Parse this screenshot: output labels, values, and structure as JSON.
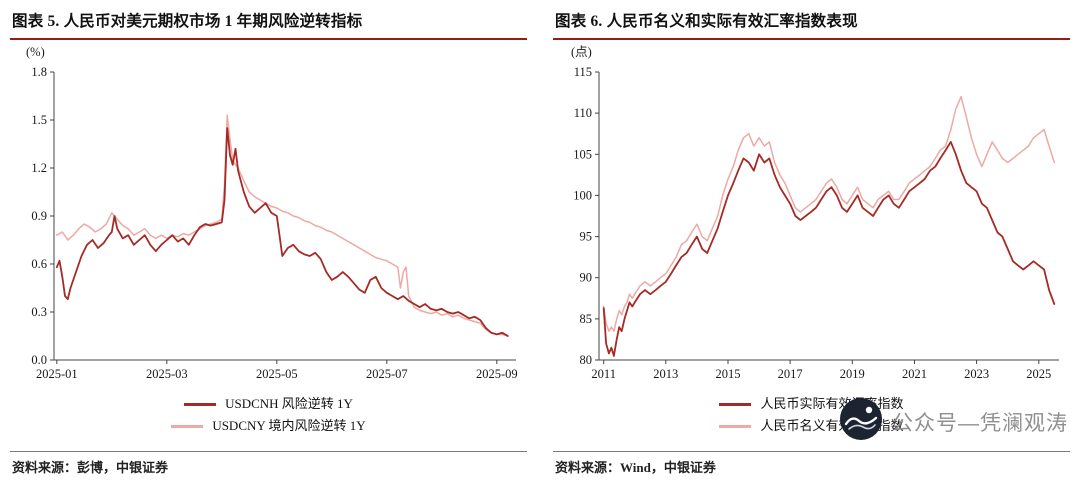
{
  "colors": {
    "title_rule": "#921E18",
    "axis": "#444444",
    "watermark_gray": "#8f8f8f",
    "dark_red": "#A52A25",
    "light_pink": "#EDA9A4"
  },
  "panels": [
    {
      "title": "图表 5. 人民币对美元期权市场 1 年期风险逆转指标",
      "source": "资料来源：彭博，中银证券"
    },
    {
      "title": "图表 6. 人民币名义和实际有效汇率指数表现",
      "source": "资料来源：Wind，中银证券"
    }
  ],
  "watermark": {
    "text": "公众号—凭澜观涛",
    "logo": "wave-logo"
  },
  "chart_data": [
    {
      "type": "line",
      "title": "人民币对美元期权市场1年期风险逆转指标",
      "unit": "(%)",
      "xlabel": "",
      "ylabel": "%",
      "grid": false,
      "legend_position": "bottom",
      "ylim": [
        0,
        1.8
      ],
      "yticks": [
        0.0,
        0.3,
        0.6,
        0.9,
        1.2,
        1.5,
        1.8
      ],
      "ytick_labels": [
        "0.0",
        "0.3",
        "0.6",
        "0.9",
        "1.2",
        "1.5",
        "1.8"
      ],
      "xlim": [
        0.95,
        9.35
      ],
      "xticks": [
        {
          "v": 1,
          "label": "2025-01"
        },
        {
          "v": 3,
          "label": "2025-03"
        },
        {
          "v": 5,
          "label": "2025-05"
        },
        {
          "v": 7,
          "label": "2025-07"
        },
        {
          "v": 9,
          "label": "2025-09"
        }
      ],
      "series": [
        {
          "name": "USDCNH 风险逆转 1Y",
          "color": "#A52A25",
          "x": [
            1.0,
            1.05,
            1.1,
            1.15,
            1.2,
            1.25,
            1.35,
            1.45,
            1.55,
            1.65,
            1.75,
            1.85,
            1.95,
            2.0,
            2.05,
            2.1,
            2.2,
            2.3,
            2.4,
            2.5,
            2.6,
            2.7,
            2.8,
            2.9,
            3.0,
            3.1,
            3.2,
            3.3,
            3.4,
            3.5,
            3.6,
            3.7,
            3.8,
            3.9,
            4.0,
            4.05,
            4.1,
            4.15,
            4.2,
            4.25,
            4.3,
            4.4,
            4.5,
            4.6,
            4.7,
            4.8,
            4.9,
            5.0,
            5.05,
            5.1,
            5.2,
            5.3,
            5.4,
            5.5,
            5.6,
            5.7,
            5.8,
            5.9,
            6.0,
            6.1,
            6.2,
            6.3,
            6.4,
            6.5,
            6.6,
            6.7,
            6.8,
            6.9,
            7.0,
            7.1,
            7.2,
            7.3,
            7.4,
            7.5,
            7.6,
            7.7,
            7.8,
            7.9,
            8.0,
            8.1,
            8.2,
            8.3,
            8.4,
            8.5,
            8.6,
            8.7,
            8.8,
            8.9,
            9.0,
            9.1,
            9.2
          ],
          "y": [
            0.58,
            0.62,
            0.52,
            0.4,
            0.38,
            0.45,
            0.55,
            0.65,
            0.72,
            0.75,
            0.7,
            0.73,
            0.78,
            0.8,
            0.9,
            0.82,
            0.76,
            0.78,
            0.72,
            0.75,
            0.78,
            0.72,
            0.68,
            0.72,
            0.75,
            0.78,
            0.74,
            0.76,
            0.72,
            0.78,
            0.83,
            0.85,
            0.84,
            0.85,
            0.86,
            1.0,
            1.45,
            1.28,
            1.22,
            1.32,
            1.18,
            1.05,
            0.96,
            0.92,
            0.95,
            0.98,
            0.92,
            0.9,
            0.78,
            0.65,
            0.7,
            0.72,
            0.68,
            0.66,
            0.65,
            0.67,
            0.63,
            0.55,
            0.5,
            0.52,
            0.55,
            0.52,
            0.48,
            0.44,
            0.42,
            0.5,
            0.52,
            0.45,
            0.42,
            0.4,
            0.38,
            0.4,
            0.37,
            0.35,
            0.33,
            0.35,
            0.32,
            0.31,
            0.32,
            0.3,
            0.29,
            0.3,
            0.28,
            0.26,
            0.27,
            0.25,
            0.2,
            0.17,
            0.16,
            0.17,
            0.15
          ]
        },
        {
          "name": "USDCNY 境内风险逆转 1Y",
          "color": "#EDA9A4",
          "x": [
            1.0,
            1.1,
            1.2,
            1.3,
            1.4,
            1.5,
            1.6,
            1.7,
            1.8,
            1.9,
            2.0,
            2.1,
            2.2,
            2.3,
            2.4,
            2.5,
            2.6,
            2.7,
            2.8,
            2.9,
            3.0,
            3.1,
            3.2,
            3.3,
            3.4,
            3.5,
            3.6,
            3.7,
            3.8,
            3.9,
            4.0,
            4.05,
            4.1,
            4.15,
            4.2,
            4.25,
            4.3,
            4.4,
            4.5,
            4.6,
            4.7,
            4.8,
            4.9,
            5.0,
            5.1,
            5.2,
            5.3,
            5.4,
            5.5,
            5.6,
            5.7,
            5.8,
            5.9,
            6.0,
            6.1,
            6.2,
            6.3,
            6.4,
            6.5,
            6.6,
            6.7,
            6.8,
            6.9,
            7.0,
            7.1,
            7.2,
            7.25,
            7.3,
            7.35,
            7.4,
            7.5,
            7.6,
            7.7,
            7.8,
            7.9,
            8.0,
            8.1,
            8.2,
            8.3,
            8.4,
            8.5,
            8.6,
            8.7,
            8.8,
            8.9,
            9.0,
            9.1,
            9.2
          ],
          "y": [
            0.78,
            0.8,
            0.75,
            0.78,
            0.82,
            0.85,
            0.83,
            0.8,
            0.82,
            0.85,
            0.92,
            0.88,
            0.84,
            0.82,
            0.78,
            0.8,
            0.82,
            0.78,
            0.76,
            0.78,
            0.76,
            0.78,
            0.77,
            0.79,
            0.78,
            0.8,
            0.82,
            0.84,
            0.85,
            0.86,
            0.88,
            1.1,
            1.53,
            1.38,
            1.25,
            1.22,
            1.2,
            1.12,
            1.05,
            1.02,
            1.0,
            0.98,
            0.96,
            0.95,
            0.93,
            0.92,
            0.9,
            0.89,
            0.87,
            0.86,
            0.84,
            0.83,
            0.81,
            0.8,
            0.78,
            0.76,
            0.74,
            0.72,
            0.7,
            0.68,
            0.66,
            0.64,
            0.63,
            0.62,
            0.6,
            0.58,
            0.45,
            0.55,
            0.58,
            0.4,
            0.33,
            0.31,
            0.3,
            0.29,
            0.3,
            0.28,
            0.29,
            0.27,
            0.28,
            0.26,
            0.25,
            0.24,
            0.23,
            0.19,
            0.17,
            0.16,
            0.16,
            0.15
          ]
        }
      ]
    },
    {
      "type": "line",
      "title": "人民币名义和实际有效汇率指数表现",
      "unit": "(点)",
      "xlabel": "",
      "ylabel": "点",
      "grid": false,
      "legend_position": "bottom",
      "ylim": [
        80,
        115
      ],
      "yticks": [
        80,
        85,
        90,
        95,
        100,
        105,
        110,
        115
      ],
      "ytick_labels": [
        "80",
        "85",
        "90",
        "95",
        "100",
        "105",
        "110",
        "115"
      ],
      "xlim": [
        2010.85,
        2025.65
      ],
      "xticks": [
        {
          "v": 2011,
          "label": "2011"
        },
        {
          "v": 2013,
          "label": "2013"
        },
        {
          "v": 2015,
          "label": "2015"
        },
        {
          "v": 2017,
          "label": "2017"
        },
        {
          "v": 2019,
          "label": "2019"
        },
        {
          "v": 2021,
          "label": "2021"
        },
        {
          "v": 2023,
          "label": "2023"
        },
        {
          "v": 2025,
          "label": "2025"
        }
      ],
      "series": [
        {
          "name": "人民币实际有效汇率指数",
          "color": "#A52A25",
          "x": [
            2011.0,
            2011.08,
            2011.17,
            2011.25,
            2011.33,
            2011.42,
            2011.5,
            2011.58,
            2011.67,
            2011.75,
            2011.83,
            2011.92,
            2012.0,
            2012.17,
            2012.33,
            2012.5,
            2012.67,
            2012.83,
            2013.0,
            2013.17,
            2013.33,
            2013.5,
            2013.67,
            2013.83,
            2014.0,
            2014.17,
            2014.33,
            2014.5,
            2014.67,
            2014.83,
            2015.0,
            2015.17,
            2015.33,
            2015.5,
            2015.67,
            2015.83,
            2016.0,
            2016.17,
            2016.33,
            2016.5,
            2016.67,
            2016.83,
            2017.0,
            2017.17,
            2017.33,
            2017.5,
            2017.67,
            2017.83,
            2018.0,
            2018.17,
            2018.33,
            2018.5,
            2018.67,
            2018.83,
            2019.0,
            2019.17,
            2019.33,
            2019.5,
            2019.67,
            2019.83,
            2020.0,
            2020.17,
            2020.33,
            2020.5,
            2020.67,
            2020.83,
            2021.0,
            2021.17,
            2021.33,
            2021.5,
            2021.67,
            2021.83,
            2022.0,
            2022.17,
            2022.33,
            2022.5,
            2022.67,
            2022.83,
            2023.0,
            2023.17,
            2023.33,
            2023.5,
            2023.67,
            2023.83,
            2024.0,
            2024.17,
            2024.33,
            2024.5,
            2024.67,
            2024.83,
            2025.0,
            2025.17,
            2025.33,
            2025.5
          ],
          "y": [
            86.3,
            82.0,
            80.8,
            81.5,
            80.5,
            82.5,
            84.0,
            83.5,
            85.0,
            86.0,
            87.0,
            86.5,
            87.0,
            88.0,
            88.5,
            88.0,
            88.5,
            89.0,
            89.5,
            90.5,
            91.5,
            92.5,
            93.0,
            94.0,
            95.0,
            93.5,
            93.0,
            94.5,
            96.0,
            98.0,
            100.0,
            101.5,
            103.0,
            104.5,
            104.0,
            103.0,
            105.0,
            104.0,
            104.5,
            102.5,
            101.0,
            100.0,
            99.0,
            97.5,
            97.0,
            97.5,
            98.0,
            98.5,
            99.5,
            100.5,
            101.0,
            100.0,
            98.5,
            98.0,
            99.0,
            100.0,
            98.5,
            98.0,
            97.5,
            98.5,
            99.5,
            100.0,
            99.0,
            98.5,
            99.5,
            100.5,
            101.0,
            101.5,
            102.0,
            103.0,
            103.5,
            104.5,
            105.5,
            106.5,
            105.0,
            103.0,
            101.5,
            101.0,
            100.5,
            99.0,
            98.5,
            97.0,
            95.5,
            95.0,
            93.5,
            92.0,
            91.5,
            91.0,
            91.5,
            92.0,
            91.5,
            91.0,
            88.5,
            86.8
          ]
        },
        {
          "name": "人民币名义有效汇率指数",
          "color": "#EDA9A4",
          "x": [
            2011.0,
            2011.08,
            2011.17,
            2011.25,
            2011.33,
            2011.42,
            2011.5,
            2011.58,
            2011.67,
            2011.75,
            2011.83,
            2011.92,
            2012.0,
            2012.17,
            2012.33,
            2012.5,
            2012.67,
            2012.83,
            2013.0,
            2013.17,
            2013.33,
            2013.5,
            2013.67,
            2013.83,
            2014.0,
            2014.17,
            2014.33,
            2014.5,
            2014.67,
            2014.83,
            2015.0,
            2015.17,
            2015.33,
            2015.5,
            2015.67,
            2015.83,
            2016.0,
            2016.17,
            2016.33,
            2016.5,
            2016.67,
            2016.83,
            2017.0,
            2017.17,
            2017.33,
            2017.5,
            2017.67,
            2017.83,
            2018.0,
            2018.17,
            2018.33,
            2018.5,
            2018.67,
            2018.83,
            2019.0,
            2019.17,
            2019.33,
            2019.5,
            2019.67,
            2019.83,
            2020.0,
            2020.17,
            2020.33,
            2020.5,
            2020.67,
            2020.83,
            2021.0,
            2021.17,
            2021.33,
            2021.5,
            2021.67,
            2021.83,
            2022.0,
            2022.17,
            2022.33,
            2022.5,
            2022.67,
            2022.83,
            2023.0,
            2023.17,
            2023.33,
            2023.5,
            2023.67,
            2023.83,
            2024.0,
            2024.17,
            2024.33,
            2024.5,
            2024.67,
            2024.83,
            2025.0,
            2025.17,
            2025.33,
            2025.5
          ],
          "y": [
            86.5,
            84.5,
            83.5,
            84.0,
            83.5,
            85.0,
            86.0,
            85.5,
            86.5,
            87.0,
            88.0,
            87.5,
            88.0,
            89.0,
            89.5,
            89.0,
            89.5,
            90.0,
            90.5,
            91.5,
            92.5,
            94.0,
            94.5,
            95.5,
            96.5,
            95.0,
            94.5,
            96.0,
            97.5,
            100.0,
            102.0,
            103.5,
            105.5,
            107.0,
            107.5,
            106.0,
            107.0,
            106.0,
            106.5,
            104.0,
            102.5,
            101.5,
            100.0,
            98.5,
            98.0,
            98.5,
            99.0,
            99.5,
            100.5,
            101.5,
            102.0,
            101.0,
            99.5,
            99.0,
            100.0,
            101.0,
            99.5,
            99.0,
            98.5,
            99.5,
            100.0,
            100.5,
            99.5,
            99.5,
            100.5,
            101.5,
            102.0,
            102.5,
            103.0,
            103.5,
            104.5,
            105.5,
            106.0,
            108.0,
            110.5,
            112.0,
            109.5,
            107.0,
            105.0,
            103.5,
            105.0,
            106.5,
            105.5,
            104.5,
            104.0,
            104.5,
            105.0,
            105.5,
            106.0,
            107.0,
            107.5,
            108.0,
            106.0,
            104.0
          ]
        }
      ]
    }
  ]
}
